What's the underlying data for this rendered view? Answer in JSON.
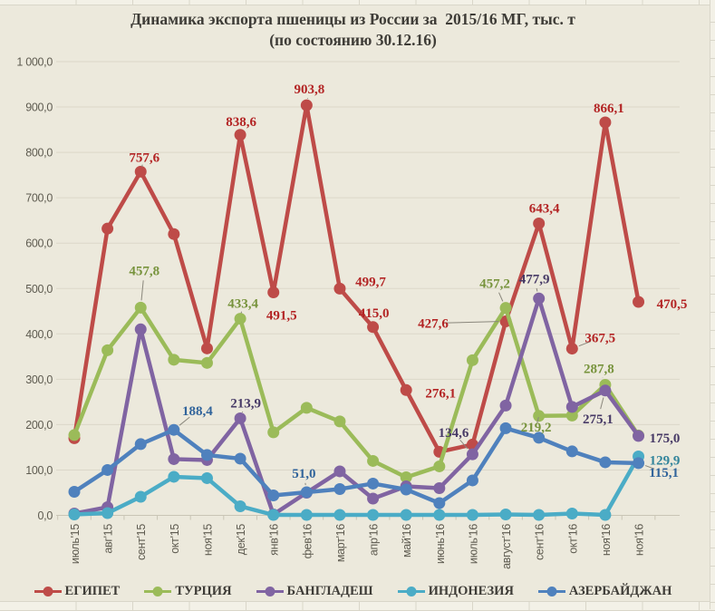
{
  "chart_data": {
    "type": "line",
    "title": "Динамика экспорта пшеницы из России за  2015/16 МГ, тыс. т",
    "subtitle": "(по состоянию 30.12.16)",
    "unit": "тыс. т",
    "ylim": [
      0,
      1000
    ],
    "grid": true,
    "legend_position": "bottom",
    "y_ticks": [
      "1 000,0",
      "900,0",
      "800,0",
      "700,0",
      "600,0",
      "500,0",
      "400,0",
      "300,0",
      "200,0",
      "100,0",
      "0,0"
    ],
    "categories": [
      "июль'15",
      "авг'15",
      "сент'15",
      "окт'15",
      "ноя'15",
      "дек'15",
      "янв'16",
      "фев'16",
      "март'16",
      "апр'16",
      "май'16",
      "июнь'16",
      "июль'16",
      "август'16",
      "сент'16",
      "окт'16",
      "ноя'16",
      "ноя'16"
    ],
    "series": [
      {
        "name": "ЕГИПЕТ",
        "color": "#BE4B48",
        "label_color": "#B32424",
        "values": [
          170,
          632,
          757.6,
          620,
          368,
          838.6,
          491.5,
          903.8,
          499.7,
          415.0,
          276.1,
          140,
          156,
          427.6,
          643.4,
          367.5,
          866.1,
          470.5
        ],
        "point_labels": [
          {
            "i": 2,
            "text": "757,6",
            "dx": 4,
            "dy": -16,
            "leader": true
          },
          {
            "i": 5,
            "text": "838,6",
            "dx": 1,
            "dy": -15,
            "leader": false
          },
          {
            "i": 6,
            "text": "491,5",
            "dx": 9,
            "dy": 25,
            "leader": false
          },
          {
            "i": 7,
            "text": "903,8",
            "dx": 3,
            "dy": -18,
            "leader": true
          },
          {
            "i": 8,
            "text": "499,7",
            "dx": 34,
            "dy": -8,
            "leader": false
          },
          {
            "i": 9,
            "text": "415,0",
            "dx": 1,
            "dy": -16,
            "leader": false
          },
          {
            "i": 10,
            "text": "276,1",
            "dx": 38,
            "dy": 3,
            "leader": false
          },
          {
            "i": 13,
            "text": "427,6",
            "dx": -80,
            "dy": 2,
            "leader": true
          },
          {
            "i": 14,
            "text": "643,4",
            "dx": 6,
            "dy": -17,
            "leader": false
          },
          {
            "i": 15,
            "text": "367,5",
            "dx": 31,
            "dy": -12,
            "leader": true
          },
          {
            "i": 16,
            "text": "866,1",
            "dx": 4,
            "dy": -16,
            "leader": false
          },
          {
            "i": 17,
            "text": "470,5",
            "dx": 37,
            "dy": 2,
            "leader": false
          }
        ]
      },
      {
        "name": "ТУРЦИЯ",
        "color": "#9BBB59",
        "label_color": "#77933C",
        "values": [
          177,
          364,
          457.8,
          343,
          336,
          433.4,
          183,
          237,
          207,
          120,
          84,
          108,
          342,
          457.2,
          219.2,
          220,
          287.8,
          176
        ],
        "point_labels": [
          {
            "i": 2,
            "text": "457,8",
            "dx": 4,
            "dy": -41,
            "leader": true
          },
          {
            "i": 5,
            "text": "433,4",
            "dx": 3,
            "dy": -17,
            "leader": true
          },
          {
            "i": 13,
            "text": "457,2",
            "dx": -12,
            "dy": -27,
            "leader": true
          },
          {
            "i": 14,
            "text": "219,2",
            "dx": -3,
            "dy": 12,
            "leader": true
          },
          {
            "i": 16,
            "text": "287,8",
            "dx": -7,
            "dy": -18,
            "leader": true
          }
        ]
      },
      {
        "name": "БАНГЛАДЕШ",
        "color": "#8064A2",
        "label_color": "#473A66",
        "values": [
          4,
          18,
          410,
          124,
          122,
          213.9,
          2,
          50,
          97,
          37,
          64,
          60,
          134.6,
          242,
          477.9,
          239,
          275.1,
          175.0
        ],
        "point_labels": [
          {
            "i": 5,
            "text": "213,9",
            "dx": 6,
            "dy": -17,
            "leader": true
          },
          {
            "i": 12,
            "text": "134,6",
            "dx": -21,
            "dy": -24,
            "leader": true
          },
          {
            "i": 14,
            "text": "477,9",
            "dx": -5,
            "dy": -22,
            "leader": true
          },
          {
            "i": 16,
            "text": "275,1",
            "dx": -8,
            "dy": 31,
            "leader": true
          },
          {
            "i": 17,
            "text": "175,0",
            "dx": 29,
            "dy": 2,
            "leader": false
          }
        ]
      },
      {
        "name": "ИНДОНЕЗИЯ",
        "color": "#4BACC6",
        "label_color": "#31849B",
        "values": [
          2,
          5,
          41,
          85,
          82,
          20,
          1,
          1,
          1,
          1,
          1,
          1,
          1,
          2,
          1,
          4,
          1,
          129.9
        ],
        "point_labels": [
          {
            "i": 17,
            "text": "129,9",
            "dx": 29,
            "dy": 4,
            "leader": false
          }
        ]
      },
      {
        "name": "АЗЕРБАЙДЖАН",
        "color": "#4F81BD",
        "label_color": "#31649B",
        "values": [
          52,
          100,
          157,
          188.4,
          133,
          125,
          44,
          51.0,
          58,
          70,
          57,
          27,
          77,
          192,
          171,
          141,
          117,
          115.1
        ],
        "point_labels": [
          {
            "i": 3,
            "text": "188,4",
            "dx": 26,
            "dy": -21,
            "leader": true
          },
          {
            "i": 7,
            "text": "51,0",
            "dx": -3,
            "dy": -21,
            "leader": true
          },
          {
            "i": 17,
            "text": "115,1",
            "dx": 28,
            "dy": 10,
            "leader": true
          }
        ]
      }
    ]
  },
  "colors": {
    "background": "#ECE9DC",
    "gridline": "#DBD7C9",
    "axis_line": "#C9C5B5",
    "tick_text": "#5E5B50",
    "title_text": "#3E3C37",
    "sheet_cell_border": "#D9D6C9"
  }
}
